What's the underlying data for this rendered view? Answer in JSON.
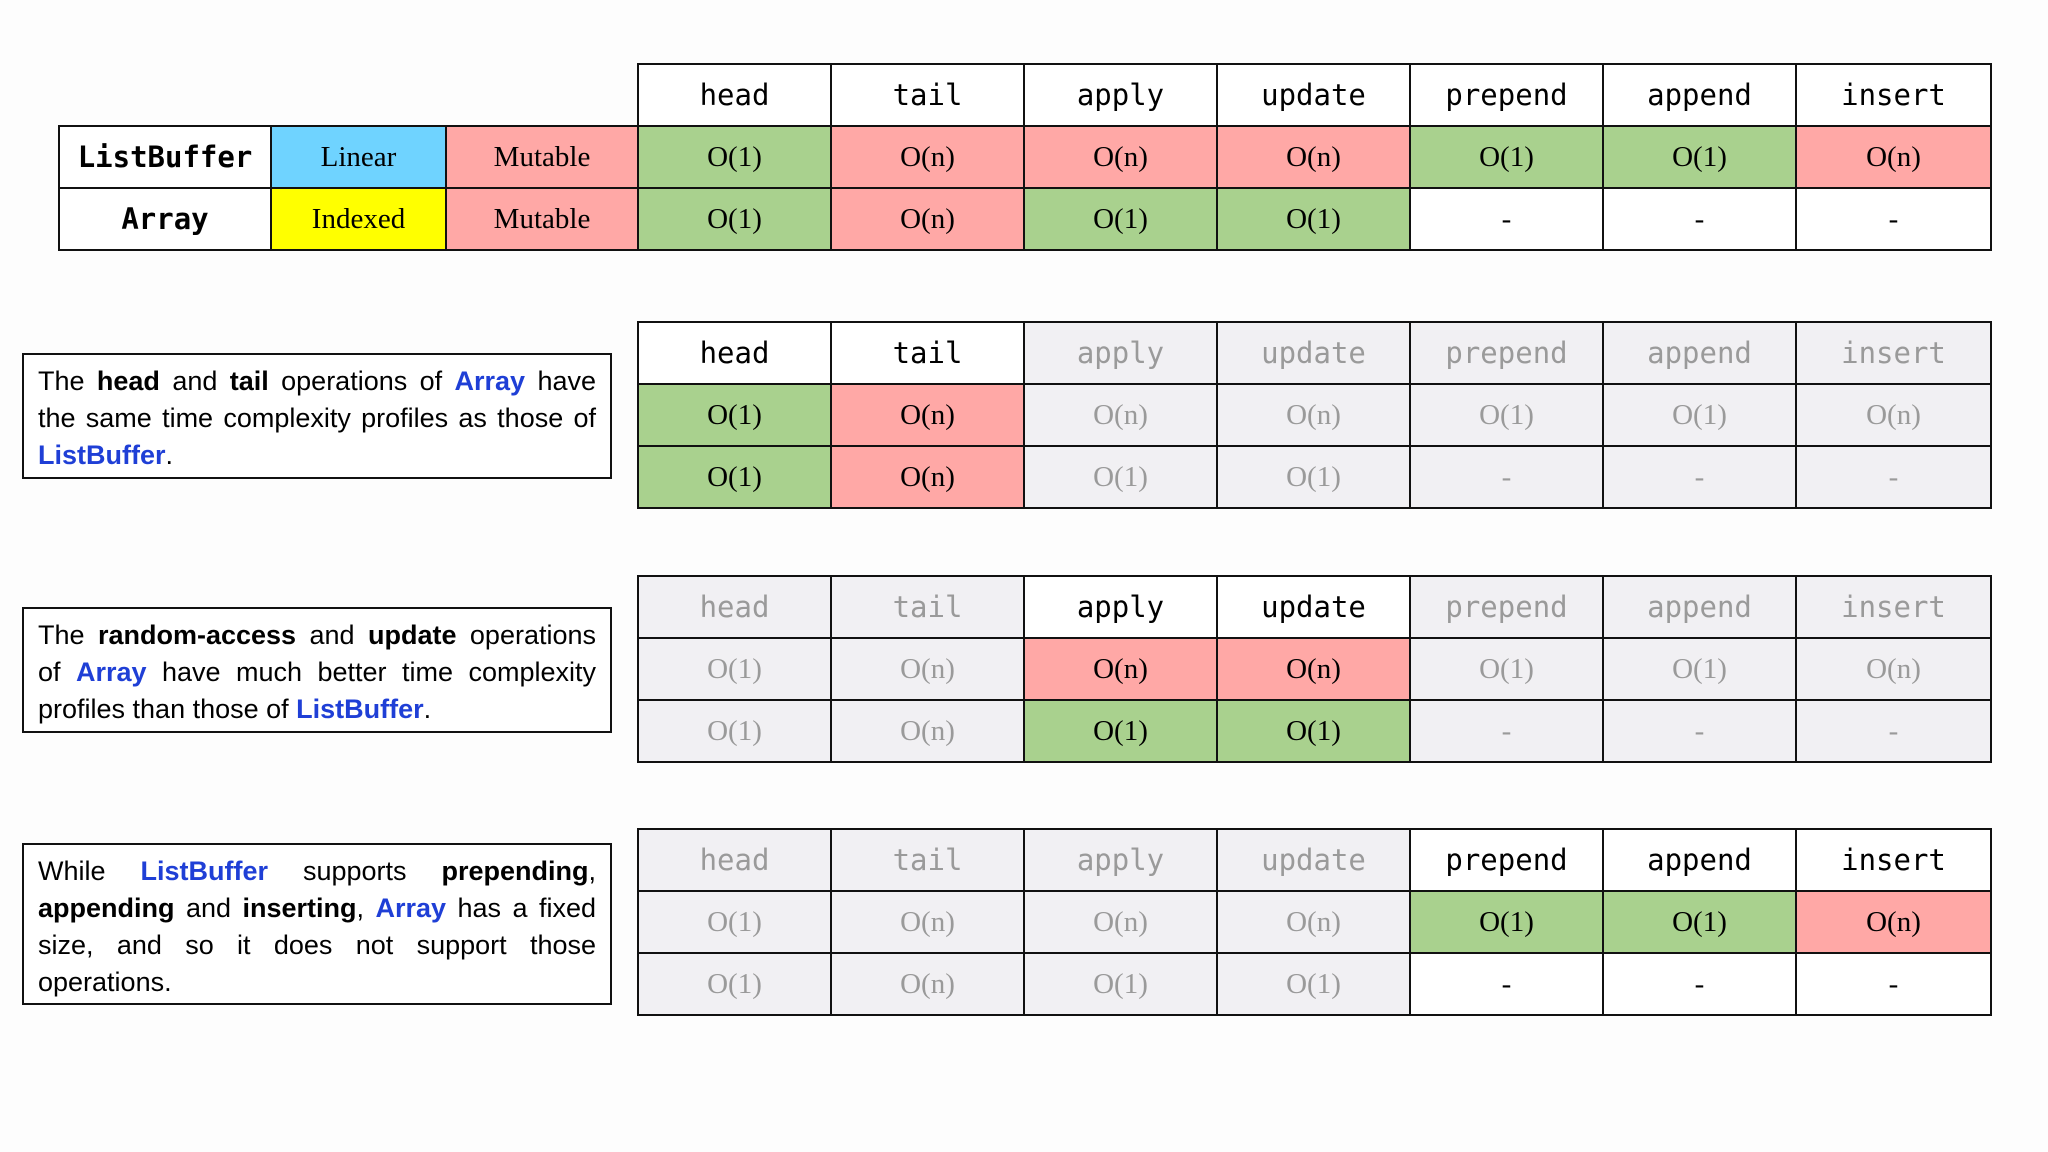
{
  "operations": [
    "head",
    "tail",
    "apply",
    "update",
    "prepend",
    "append",
    "insert"
  ],
  "collections": [
    {
      "name": "ListBuffer",
      "access": "Linear",
      "mutability": "Mutable",
      "complexities": [
        "O(1)",
        "O(n)",
        "O(n)",
        "O(n)",
        "O(1)",
        "O(1)",
        "O(n)"
      ]
    },
    {
      "name": "Array",
      "access": "Indexed",
      "mutability": "Mutable",
      "complexities": [
        "O(1)",
        "O(n)",
        "O(1)",
        "O(1)",
        "-",
        "-",
        "-"
      ]
    }
  ],
  "colors": {
    "good": "#a9d18e",
    "bad": "#ffa8a6",
    "linear": "#6fd3ff",
    "indexed": "#ffff00",
    "mutable": "#ffa8a6",
    "dimmed": "#f1f0f3",
    "keyword": "#1f3fd6"
  },
  "highlight_groups": [
    {
      "ops": [
        "head",
        "tail"
      ],
      "note": [
        {
          "t": "The "
        },
        {
          "t": "head",
          "s": "b"
        },
        {
          "t": " and "
        },
        {
          "t": "tail",
          "s": "b"
        },
        {
          "t": " operations of "
        },
        {
          "t": "Array",
          "s": "kw"
        },
        {
          "t": " have the same time complexity profiles as those of "
        },
        {
          "t": "ListBuffer",
          "s": "kw"
        },
        {
          "t": "."
        }
      ]
    },
    {
      "ops": [
        "apply",
        "update"
      ],
      "note": [
        {
          "t": "The "
        },
        {
          "t": "random-access",
          "s": "b"
        },
        {
          "t": " and "
        },
        {
          "t": "update",
          "s": "b"
        },
        {
          "t": " operations of "
        },
        {
          "t": "Array",
          "s": "kw"
        },
        {
          "t": " have much better  time complexity profiles than those of "
        },
        {
          "t": "ListBuffer",
          "s": "kw"
        },
        {
          "t": "."
        }
      ]
    },
    {
      "ops": [
        "prepend",
        "append",
        "insert"
      ],
      "note": [
        {
          "t": "While "
        },
        {
          "t": "ListBuffer",
          "s": "kw"
        },
        {
          "t": " supports "
        },
        {
          "t": "prepending",
          "s": "b"
        },
        {
          "t": ", "
        },
        {
          "t": "appending",
          "s": "b"
        },
        {
          "t": " and "
        },
        {
          "t": "inserting",
          "s": "b"
        },
        {
          "t": ", "
        },
        {
          "t": "Array",
          "s": "kw"
        },
        {
          "t": " has a fixed size, and so it does not support those operations."
        }
      ]
    }
  ]
}
